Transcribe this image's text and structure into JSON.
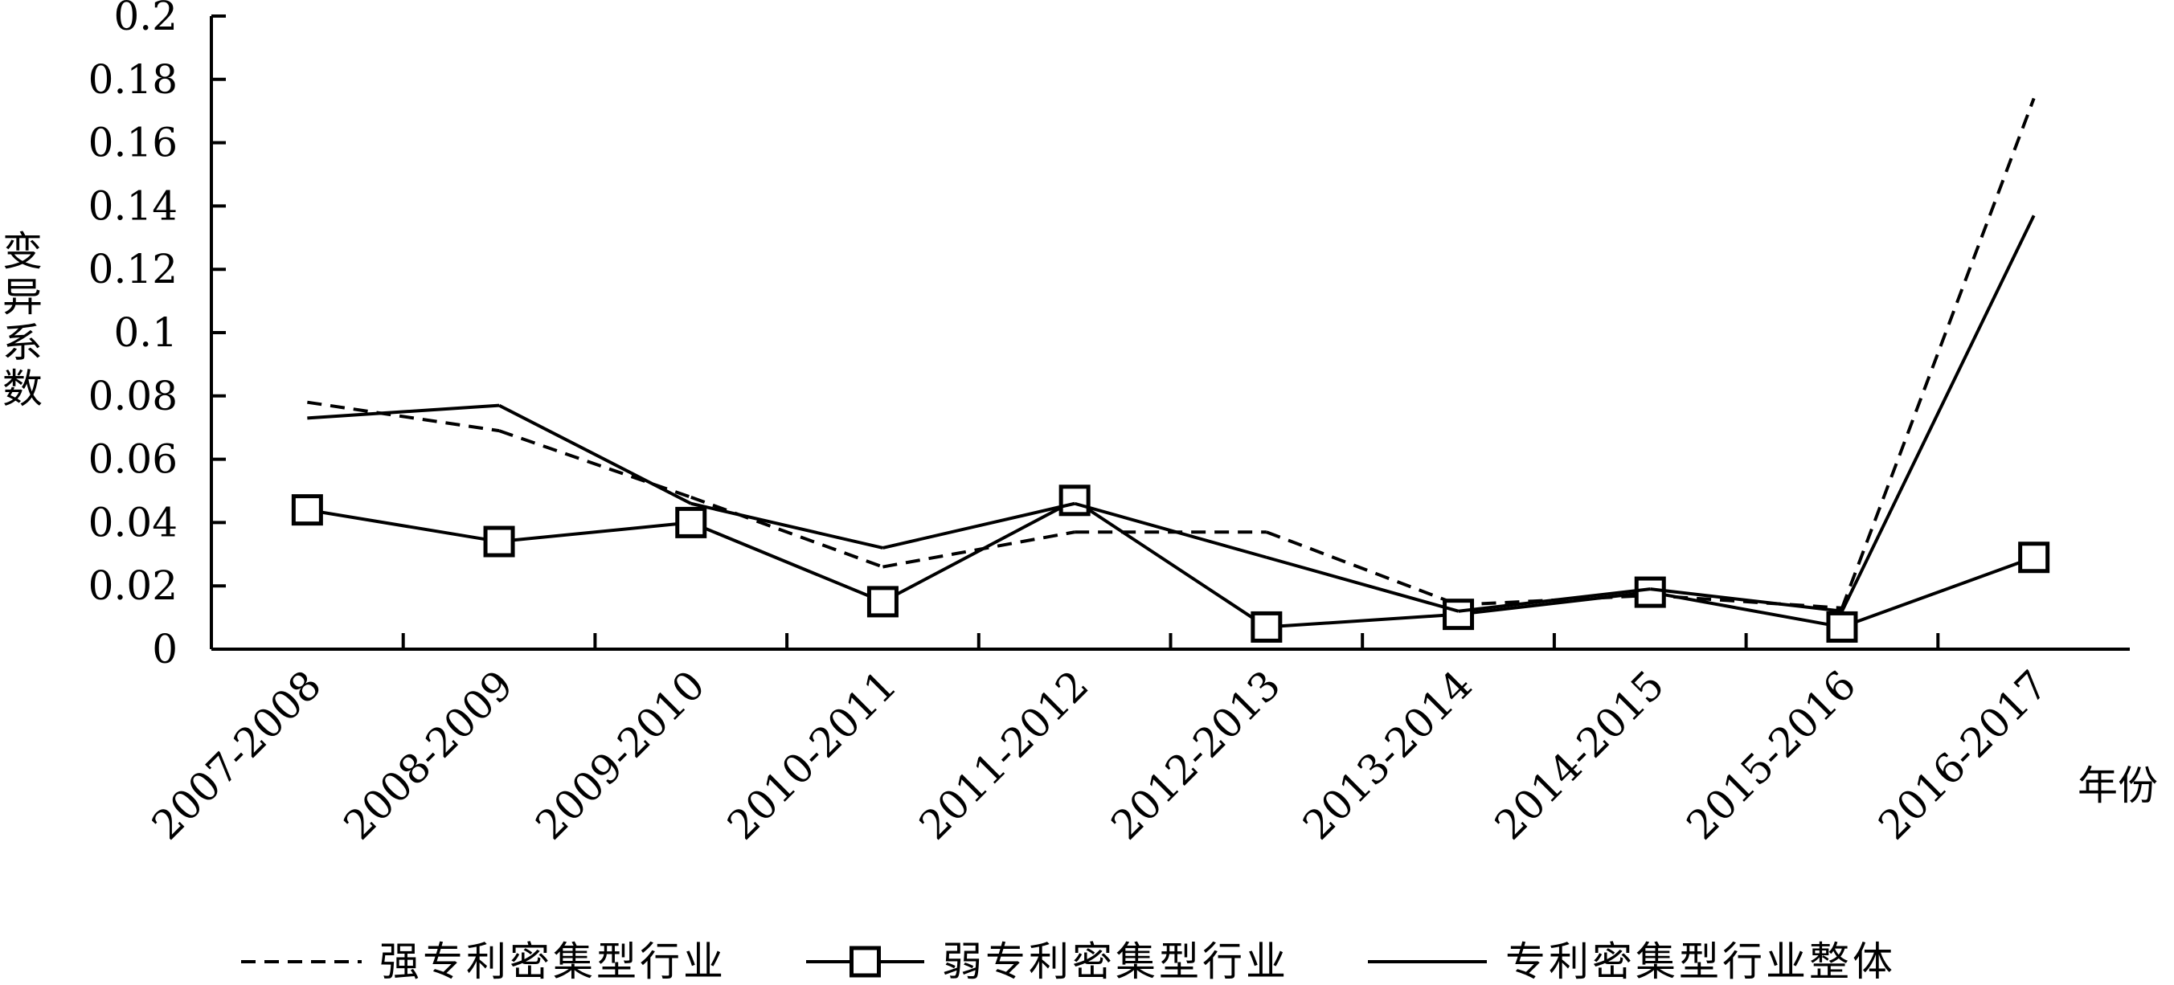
{
  "chart_data": {
    "type": "line",
    "title": "",
    "xlabel": "年份",
    "ylabel": "变异系数",
    "categories": [
      "2007-2008",
      "2008-2009",
      "2009-2010",
      "2010-2011",
      "2011-2012",
      "2012-2013",
      "2013-2014",
      "2014-2015",
      "2015-2016",
      "2016-2017"
    ],
    "ylim": [
      0,
      0.2
    ],
    "yticks": [
      "0",
      "0.02",
      "0.04",
      "0.06",
      "0.08",
      "0.1",
      "0.12",
      "0.14",
      "0.16",
      "0.18",
      "0.2"
    ],
    "grid": false,
    "legend_position": "bottom",
    "series": [
      {
        "name": "强专利密集型行业",
        "style": "dashed",
        "color": "#000000",
        "values": [
          0.078,
          0.069,
          0.048,
          0.026,
          0.037,
          0.037,
          0.014,
          0.017,
          0.013,
          0.174
        ]
      },
      {
        "name": "弱专利密集型行业",
        "style": "solid-square-markers",
        "color": "#000000",
        "values": [
          0.044,
          0.034,
          0.04,
          0.015,
          0.047,
          0.007,
          0.011,
          0.018,
          0.007,
          0.029
        ]
      },
      {
        "name": "专利密集型行业整体",
        "style": "solid",
        "color": "#000000",
        "values": [
          0.073,
          0.077,
          0.046,
          0.032,
          0.046,
          0.029,
          0.012,
          0.019,
          0.012,
          0.137
        ]
      }
    ]
  }
}
